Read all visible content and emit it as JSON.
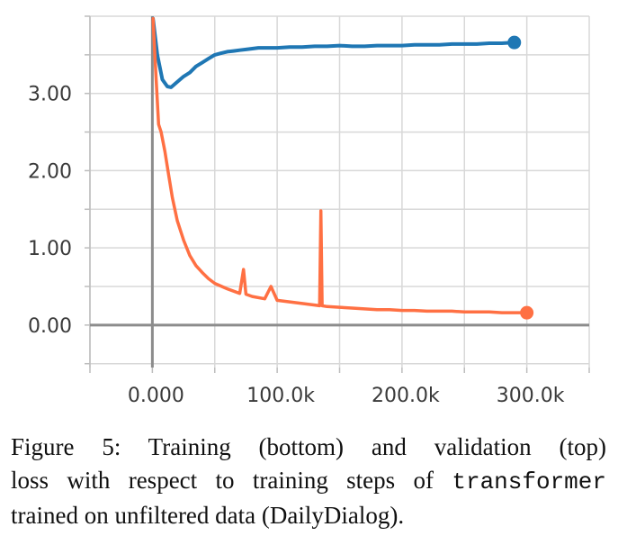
{
  "chart_data": {
    "type": "line",
    "x_ticks": [
      "0.000",
      "100.0k",
      "200.0k",
      "300.0k"
    ],
    "y_ticks": [
      "0.00",
      "1.00",
      "2.00",
      "3.00"
    ],
    "xlim": [
      -50000,
      350000
    ],
    "ylim": [
      -0.55,
      4.0
    ],
    "grid": true,
    "series": [
      {
        "name": "validation (top)",
        "color": "#1f77b4",
        "x": [
          500,
          4000,
          8000,
          12000,
          15000,
          20000,
          25000,
          30000,
          35000,
          40000,
          45000,
          50000,
          55000,
          60000,
          65000,
          70000,
          75000,
          80000,
          85000,
          90000,
          100000,
          110000,
          120000,
          130000,
          140000,
          150000,
          160000,
          170000,
          180000,
          190000,
          200000,
          210000,
          220000,
          230000,
          240000,
          250000,
          260000,
          270000,
          280000,
          290000
        ],
        "y": [
          3.97,
          3.5,
          3.18,
          3.09,
          3.08,
          3.15,
          3.22,
          3.27,
          3.35,
          3.4,
          3.45,
          3.5,
          3.52,
          3.54,
          3.55,
          3.56,
          3.57,
          3.58,
          3.59,
          3.59,
          3.59,
          3.6,
          3.6,
          3.61,
          3.61,
          3.62,
          3.61,
          3.61,
          3.62,
          3.62,
          3.62,
          3.63,
          3.63,
          3.63,
          3.64,
          3.64,
          3.64,
          3.65,
          3.65,
          3.66
        ]
      },
      {
        "name": "Training (bottom)",
        "color": "#ff7043",
        "x": [
          500,
          3000,
          5000,
          7000,
          10000,
          13000,
          16000,
          20000,
          25000,
          30000,
          35000,
          40000,
          45000,
          50000,
          60000,
          70000,
          73000,
          75000,
          80000,
          90000,
          95000,
          100000,
          110000,
          120000,
          130000,
          134000,
          135000,
          136000,
          140000,
          150000,
          160000,
          170000,
          180000,
          190000,
          200000,
          210000,
          220000,
          230000,
          240000,
          250000,
          260000,
          270000,
          280000,
          290000,
          300000
        ],
        "y": [
          3.97,
          3.2,
          2.6,
          2.5,
          2.25,
          1.95,
          1.65,
          1.35,
          1.1,
          0.9,
          0.77,
          0.68,
          0.6,
          0.54,
          0.47,
          0.41,
          0.72,
          0.4,
          0.37,
          0.34,
          0.5,
          0.32,
          0.3,
          0.28,
          0.26,
          0.25,
          1.48,
          0.25,
          0.24,
          0.23,
          0.22,
          0.21,
          0.2,
          0.2,
          0.19,
          0.19,
          0.18,
          0.18,
          0.18,
          0.17,
          0.17,
          0.17,
          0.16,
          0.16,
          0.16
        ]
      }
    ]
  },
  "caption": {
    "line1": "Figure 5:  Training (bottom) and validation (top)",
    "line2_pre": "loss with respect to training steps of ",
    "line2_code": "transformer",
    "line3": "trained on unfiltered data (DailyDialog)."
  }
}
